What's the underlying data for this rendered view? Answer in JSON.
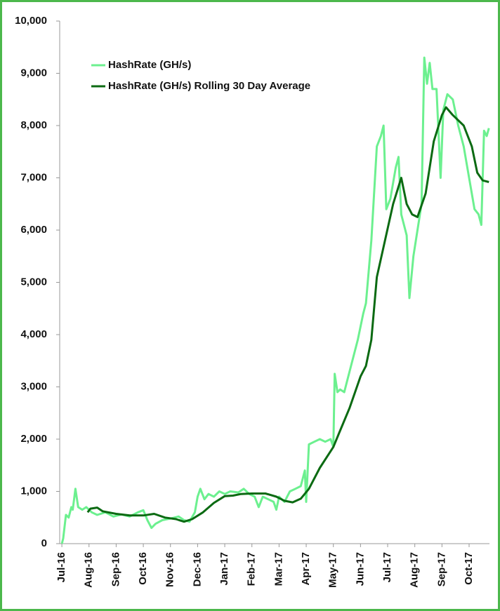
{
  "chart_data": {
    "type": "line",
    "xlim": [
      -0.08,
      15.75
    ],
    "ylim": [
      0,
      10000
    ],
    "xticks": [
      {
        "value": 0,
        "label": "Jul-16"
      },
      {
        "value": 1,
        "label": "Aug-16"
      },
      {
        "value": 2,
        "label": "Sep-16"
      },
      {
        "value": 3,
        "label": "Oct-16"
      },
      {
        "value": 4,
        "label": "Nov-16"
      },
      {
        "value": 5,
        "label": "Dec-16"
      },
      {
        "value": 6,
        "label": "Jan-17"
      },
      {
        "value": 7,
        "label": "Feb-17"
      },
      {
        "value": 8,
        "label": "Mar-17"
      },
      {
        "value": 9,
        "label": "Apr-17"
      },
      {
        "value": 10,
        "label": "May-17"
      },
      {
        "value": 11,
        "label": "Jun-17"
      },
      {
        "value": 12,
        "label": "Jul-17"
      },
      {
        "value": 13,
        "label": "Aug-17"
      },
      {
        "value": 14,
        "label": "Sep-17"
      },
      {
        "value": 15,
        "label": "Oct-17"
      }
    ],
    "yticks": [
      0,
      {
        "value": 1000,
        "label": "1,000"
      },
      {
        "value": 2000,
        "label": "2,000"
      },
      {
        "value": 3000,
        "label": "3,000"
      },
      {
        "value": 4000,
        "label": "4,000"
      },
      {
        "value": 5000,
        "label": "5,000"
      },
      {
        "value": 6000,
        "label": "6,000"
      },
      {
        "value": 7000,
        "label": "7,000"
      },
      {
        "value": 8000,
        "label": "8,000"
      },
      {
        "value": 9000,
        "label": "9,000"
      },
      {
        "value": 10000,
        "label": "10,000"
      }
    ],
    "legend": "upper left",
    "series": [
      {
        "name": "HashRate (GH/s)",
        "color": "#6cf08f",
        "x": [
          0,
          0.05,
          0.15,
          0.25,
          0.35,
          0.4,
          0.5,
          0.6,
          0.75,
          0.9,
          1.1,
          1.3,
          1.6,
          1.9,
          2.2,
          2.5,
          2.8,
          3.0,
          3.15,
          3.3,
          3.45,
          3.7,
          4.0,
          4.3,
          4.5,
          4.7,
          4.9,
          5.0,
          5.1,
          5.25,
          5.4,
          5.6,
          5.8,
          6.0,
          6.2,
          6.5,
          6.7,
          6.9,
          7.1,
          7.25,
          7.4,
          7.6,
          7.8,
          7.9,
          8.0,
          8.2,
          8.4,
          8.6,
          8.8,
          8.95,
          9.0,
          9.1,
          9.3,
          9.5,
          9.7,
          9.9,
          10.0,
          10.05,
          10.15,
          10.25,
          10.4,
          10.6,
          10.9,
          11.1,
          11.2,
          11.4,
          11.6,
          11.75,
          11.85,
          11.95,
          12.1,
          12.3,
          12.4,
          12.5,
          12.7,
          12.8,
          12.95,
          13.1,
          13.25,
          13.35,
          13.45,
          13.55,
          13.65,
          13.8,
          13.95,
          14.05,
          14.2,
          14.4,
          14.6,
          14.8,
          15.0,
          15.2,
          15.35,
          15.45,
          15.55,
          15.65,
          15.73
        ],
        "values": [
          0,
          100,
          550,
          500,
          700,
          650,
          1050,
          700,
          650,
          700,
          600,
          550,
          600,
          520,
          560,
          520,
          600,
          640,
          450,
          300,
          380,
          450,
          480,
          520,
          450,
          420,
          600,
          900,
          1050,
          850,
          950,
          900,
          1000,
          950,
          1000,
          980,
          1050,
          950,
          900,
          700,
          900,
          850,
          800,
          650,
          900,
          800,
          1000,
          1050,
          1100,
          1400,
          800,
          1900,
          1950,
          2000,
          1950,
          2000,
          1850,
          3250,
          2900,
          2950,
          2900,
          3300,
          3900,
          4400,
          4600,
          5800,
          7600,
          7800,
          8000,
          6400,
          6600,
          7200,
          7400,
          6300,
          5900,
          4700,
          5500,
          6000,
          6500,
          9300,
          8800,
          9200,
          8700,
          8700,
          7000,
          8300,
          8600,
          8500,
          8000,
          7600,
          7000,
          6400,
          6300,
          6100,
          7900,
          7800,
          7950
        ]
      },
      {
        "name": "HashRate (GH/s) Rolling 30 Day Average",
        "color": "#0b6a12",
        "x": [
          0.95,
          1.05,
          1.3,
          1.5,
          2.0,
          2.5,
          3.0,
          3.4,
          3.8,
          4.2,
          4.5,
          4.8,
          5.2,
          5.6,
          6.0,
          6.3,
          6.6,
          7.0,
          7.5,
          7.9,
          8.2,
          8.5,
          8.8,
          9.1,
          9.5,
          10.0,
          10.2,
          10.6,
          11.0,
          11.2,
          11.4,
          11.6,
          11.9,
          12.2,
          12.5,
          12.7,
          12.9,
          13.1,
          13.4,
          13.7,
          14.0,
          14.15,
          14.4,
          14.8,
          15.1,
          15.3,
          15.5,
          15.73
        ],
        "values": [
          600,
          670,
          690,
          620,
          570,
          540,
          540,
          570,
          500,
          470,
          420,
          470,
          600,
          780,
          910,
          920,
          950,
          960,
          960,
          900,
          820,
          790,
          860,
          1050,
          1450,
          1850,
          2100,
          2600,
          3200,
          3400,
          3900,
          5100,
          5800,
          6500,
          7000,
          6500,
          6300,
          6250,
          6700,
          7700,
          8200,
          8350,
          8200,
          8000,
          7600,
          7100,
          6950,
          6920
        ]
      }
    ]
  }
}
